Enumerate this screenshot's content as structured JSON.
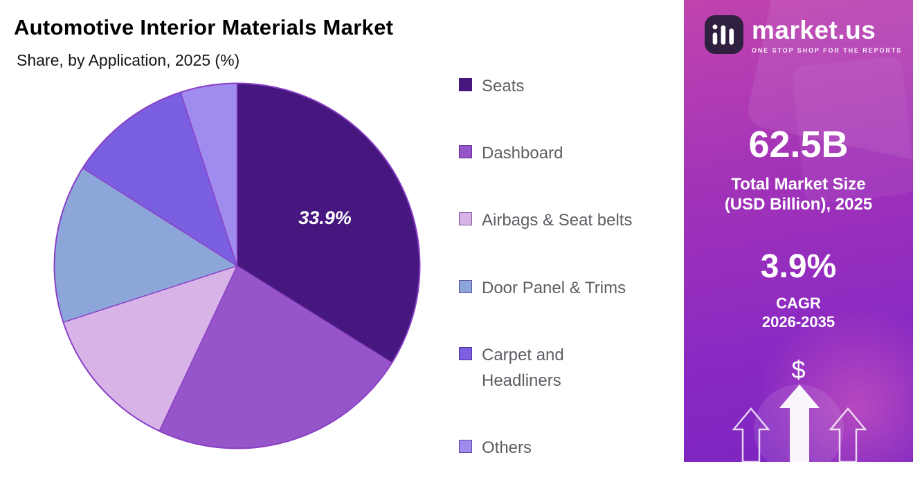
{
  "header": {
    "title": "Automotive Interior Materials Market",
    "subtitle": "Share, by Application, 2025 (%)"
  },
  "chart_data": {
    "type": "pie",
    "title": "Automotive Interior Materials Market",
    "subtitle": "Share, by Application, 2025 (%)",
    "unit": "%",
    "start_angle_deg": 0,
    "direction": "clockwise",
    "stroke_color": "#8a3fc6",
    "legend_position": "right",
    "slices": [
      {
        "label": "Seats",
        "value": 33.9,
        "color": "#46187f",
        "data_label": "33.9%"
      },
      {
        "label": "Dashboard",
        "value": 23.1,
        "color": "#9655c8"
      },
      {
        "label": "Airbags & Seat belts",
        "value": 13.0,
        "color": "#d7b3e8"
      },
      {
        "label": "Door Panel & Trims",
        "value": 14.0,
        "color": "#8ca6da"
      },
      {
        "label": "Carpet and Headliners",
        "value": 11.0,
        "color": "#7a5fe0"
      },
      {
        "label": "Others",
        "value": 5.0,
        "color": "#a08bee"
      }
    ]
  },
  "side_panel": {
    "logo": {
      "brand": "market.us",
      "tagline": "ONE STOP SHOP FOR THE REPORTS"
    },
    "market_size_value": "62.5B",
    "market_size_label_line1": "Total Market Size",
    "market_size_label_line2": "(USD Billion), 2025",
    "cagr_value": "3.9%",
    "cagr_label": "CAGR",
    "cagr_years": "2026-2035",
    "currency_symbol": "$",
    "gradient_top": "#c044ae",
    "gradient_bottom": "#7b25c0"
  }
}
